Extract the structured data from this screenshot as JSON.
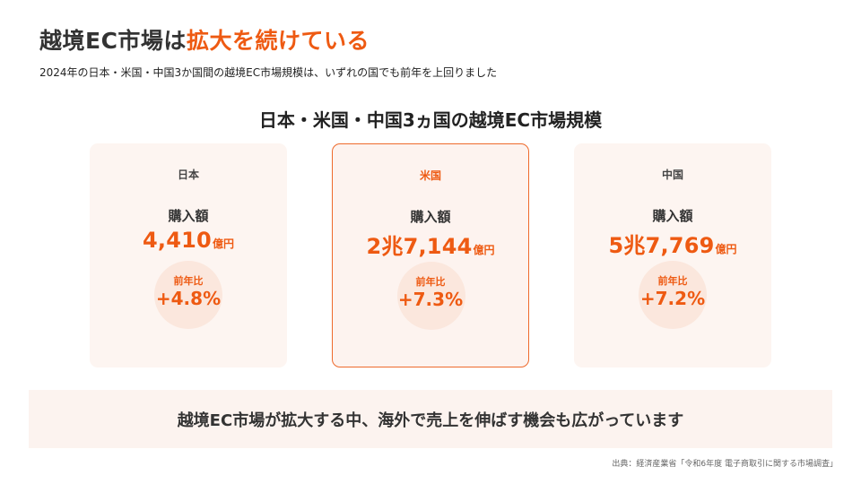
{
  "header": {
    "title_plain": "越境EC市場は",
    "title_accent": "拡大を続けている",
    "subtitle": "2024年の日本・米国・中国3か国間の越境EC市場規模は、いずれの国でも前年を上回りました"
  },
  "section_title": "日本・米国・中国3ヵ国の越境EC市場規模",
  "cards": [
    {
      "country": "日本",
      "amount_label": "購入額",
      "amount": "4,410",
      "unit": "億円",
      "yoy_label": "前年比",
      "yoy": "+4.8%",
      "highlighted": false
    },
    {
      "country": "米国",
      "amount_label": "購入額",
      "amount": "2兆7,144",
      "unit": "億円",
      "yoy_label": "前年比",
      "yoy": "+7.3%",
      "highlighted": true
    },
    {
      "country": "中国",
      "amount_label": "購入額",
      "amount": "5兆7,769",
      "unit": "億円",
      "yoy_label": "前年比",
      "yoy": "+7.2%",
      "highlighted": false
    }
  ],
  "banner": "越境EC市場が拡大する中、海外で売上を伸ばす機会も広がっています",
  "source": "出典：経済産業省「令和6年度 電子商取引に関する市場調査」",
  "colors": {
    "accent": "#ee5a12",
    "card_bg": "#fdf5f1",
    "circle_bg": "#fbe7dd",
    "banner_bg": "#fcf3ef",
    "text": "#333333"
  }
}
